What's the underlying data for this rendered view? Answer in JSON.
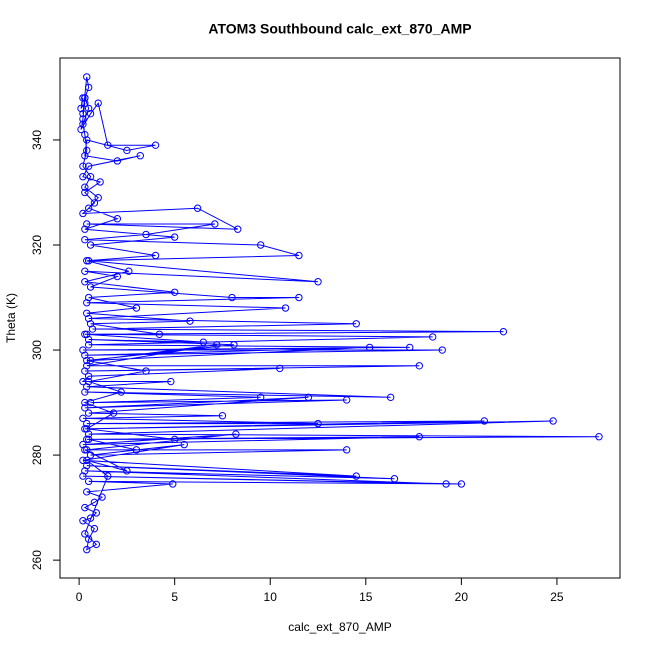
{
  "chart_data": {
    "type": "line",
    "title": "ATOM3 Southbound calc_ext_870_AMP",
    "x_label": "calc_ext_870_AMP",
    "y_label": "Theta (K)",
    "color": "#0000ff",
    "markers": true,
    "xlim": [
      -1.0,
      28.3
    ],
    "ylim": [
      256.6,
      355.6
    ],
    "xticks": [
      0,
      5,
      10,
      15,
      20,
      25
    ],
    "yticks": [
      260,
      280,
      300,
      320,
      340
    ],
    "x": [
      0.2,
      0.1,
      0.3,
      0.2,
      0.4,
      0.5,
      0.3,
      0.2,
      0.1,
      0.6,
      1.0,
      1.5,
      4.0,
      2.5,
      0.4,
      0.3,
      2.0,
      3.2,
      0.5,
      0.2,
      1.1,
      0.3,
      0.8,
      0.2,
      6.2,
      8.3,
      0.4,
      7.1,
      3.5,
      0.3,
      9.5,
      11.5,
      0.5,
      12.5,
      0.3,
      2.0,
      0.6,
      8.0,
      11.5,
      0.4,
      10.8,
      0.5,
      14.5,
      0.7,
      22.2,
      0.4,
      18.5,
      0.5,
      17.3,
      0.2,
      19.0,
      0.3,
      15.2,
      0.6,
      7.2,
      0.4,
      17.8,
      0.3,
      10.5,
      0.5,
      0.2,
      4.8,
      0.4,
      16.3,
      0.3,
      9.5,
      0.6,
      14.0,
      0.3,
      12.0,
      0.5,
      7.5,
      0.2,
      12.5,
      0.4,
      21.2,
      0.3,
      24.8,
      0.5,
      27.2,
      0.4,
      17.8,
      0.2,
      8.2,
      0.4,
      14.0,
      0.6,
      5.5,
      0.2,
      14.5,
      0.4,
      16.5,
      0.3,
      19.2,
      0.2,
      20.0,
      0.5,
      4.9,
      0.4,
      1.2,
      0.8,
      0.3,
      0.9,
      0.6,
      0.2,
      0.8,
      0.5,
      0.4,
      0.9,
      0.3,
      1.5,
      0.4,
      2.5,
      0.3,
      3.0,
      0.5,
      5.0,
      0.4,
      1.8,
      0.3,
      2.2,
      0.5,
      3.5,
      0.4,
      8.1,
      0.5,
      6.5,
      0.3,
      4.2,
      0.6,
      5.8,
      0.4,
      3.0,
      0.5,
      5.0,
      0.3,
      2.6,
      0.4,
      4.0,
      0.6,
      5.0,
      0.3,
      2.0,
      0.5,
      1.0,
      0.3,
      0.6,
      0.2,
      0.4,
      0.3,
      0.2,
      0.5,
      0.3
    ],
    "y": [
      348,
      346,
      347,
      345,
      352,
      350,
      348,
      344,
      342,
      345,
      347,
      339,
      339,
      338,
      340,
      337,
      336,
      337,
      335,
      333,
      332,
      330,
      328,
      326,
      327,
      323,
      324,
      324,
      322,
      321,
      320,
      318,
      317,
      313,
      315,
      314,
      312,
      310,
      310,
      309,
      308,
      306,
      305,
      304,
      303.5,
      303,
      302.5,
      301,
      300.5,
      300,
      300,
      299,
      300.5,
      298,
      301,
      297,
      297,
      296,
      296.5,
      295,
      294,
      294,
      293,
      291,
      292,
      291,
      290,
      290.5,
      289,
      291,
      288,
      287.5,
      287,
      286,
      286,
      286.5,
      285,
      286.5,
      284,
      283.5,
      283,
      283.5,
      282,
      284,
      281,
      281,
      280,
      282,
      279,
      276,
      278,
      275.5,
      277,
      274.5,
      276,
      274.5,
      275,
      274.5,
      273,
      272,
      271,
      270,
      269,
      268,
      267.5,
      266,
      264,
      262,
      263,
      265,
      276,
      279,
      277,
      281,
      281,
      283,
      283,
      285,
      288,
      290,
      292,
      294,
      296,
      298,
      301,
      302,
      301.5,
      303,
      303,
      305,
      305.5,
      307,
      308,
      310,
      311,
      313,
      315,
      317,
      318,
      320,
      321.5,
      323,
      325,
      327,
      329,
      331,
      333,
      335,
      338,
      341,
      343,
      346,
      348
    ]
  }
}
